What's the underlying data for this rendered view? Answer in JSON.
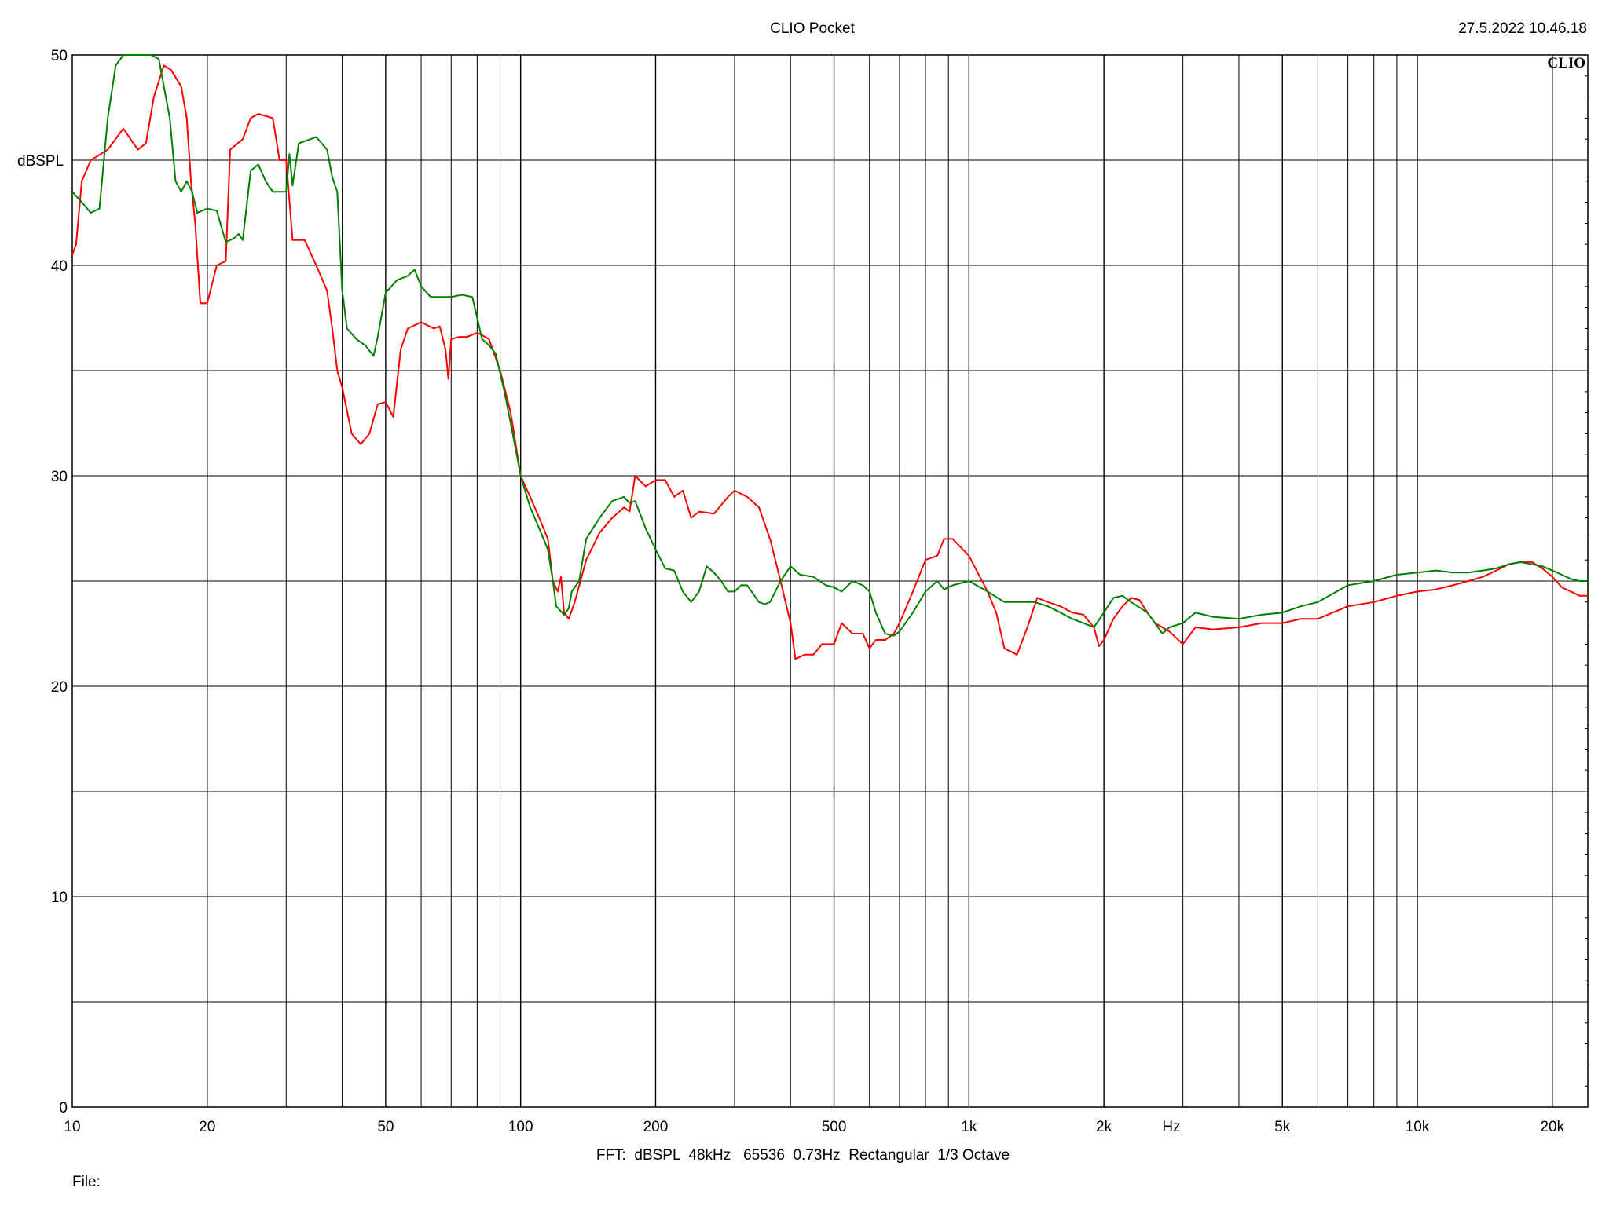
{
  "header": {
    "title": "CLIO Pocket",
    "timestamp": "27.5.2022 10.46.18",
    "logo": "CLIO"
  },
  "footer": {
    "settings": "FFT:  dBSPL  48kHz   65536  0.73Hz  Rectangular  1/3 Octave",
    "file_label": "File:"
  },
  "colors": {
    "background": "#ffffff",
    "grid": "#000000",
    "series_red": "#ff0000",
    "series_green": "#008000"
  },
  "chart_data": {
    "type": "line",
    "title": "CLIO Pocket",
    "ylabel": "dBSPL",
    "xlabel": "Hz",
    "x_scale": "log",
    "xlim": [
      10,
      24000
    ],
    "ylim": [
      0,
      50
    ],
    "grid": true,
    "legend": "none",
    "x_ticks": [
      {
        "value": 10,
        "label": "10"
      },
      {
        "value": 20,
        "label": "20"
      },
      {
        "value": 50,
        "label": "50"
      },
      {
        "value": 100,
        "label": "100"
      },
      {
        "value": 200,
        "label": "200"
      },
      {
        "value": 500,
        "label": "500"
      },
      {
        "value": 1000,
        "label": "1k"
      },
      {
        "value": 2000,
        "label": "2k"
      },
      {
        "value": 5000,
        "label": "5k"
      },
      {
        "value": 10000,
        "label": "10k"
      },
      {
        "value": 20000,
        "label": "20k"
      }
    ],
    "y_ticks": [
      {
        "value": 0,
        "label": "0"
      },
      {
        "value": 10,
        "label": "10"
      },
      {
        "value": 20,
        "label": "20"
      },
      {
        "value": 30,
        "label": "30"
      },
      {
        "value": 40,
        "label": "40"
      },
      {
        "value": 50,
        "label": "50"
      }
    ],
    "series": [
      {
        "color": "#ff0000",
        "points": [
          [
            10,
            40.5
          ],
          [
            10.2,
            41
          ],
          [
            10.5,
            44
          ],
          [
            11,
            45
          ],
          [
            12,
            45.5
          ],
          [
            13,
            46.5
          ],
          [
            14,
            45.5
          ],
          [
            14.6,
            45.8
          ],
          [
            15.2,
            48
          ],
          [
            16,
            49.5
          ],
          [
            16.6,
            49.3
          ],
          [
            17.5,
            48.5
          ],
          [
            18,
            47
          ],
          [
            18.4,
            44
          ],
          [
            18.8,
            42
          ],
          [
            19.3,
            38.2
          ],
          [
            20,
            38.2
          ],
          [
            21,
            40
          ],
          [
            22,
            40.2
          ],
          [
            22.5,
            45.5
          ],
          [
            24,
            46
          ],
          [
            25,
            47
          ],
          [
            26,
            47.2
          ],
          [
            28,
            47
          ],
          [
            29,
            45
          ],
          [
            30,
            45
          ],
          [
            31,
            41.2
          ],
          [
            33,
            41.2
          ],
          [
            35,
            40
          ],
          [
            37,
            38.8
          ],
          [
            38,
            37
          ],
          [
            39,
            35
          ],
          [
            40,
            34.2
          ],
          [
            42,
            32
          ],
          [
            44,
            31.5
          ],
          [
            46,
            32
          ],
          [
            48,
            33.4
          ],
          [
            50,
            33.5
          ],
          [
            52,
            32.8
          ],
          [
            54,
            36
          ],
          [
            56,
            37
          ],
          [
            60,
            37.3
          ],
          [
            64,
            37
          ],
          [
            66,
            37.1
          ],
          [
            68,
            36
          ],
          [
            69,
            34.6
          ],
          [
            70,
            36.5
          ],
          [
            73,
            36.6
          ],
          [
            76,
            36.6
          ],
          [
            80,
            36.8
          ],
          [
            85,
            36.5
          ],
          [
            90,
            35
          ],
          [
            95,
            33
          ],
          [
            100,
            30
          ],
          [
            105,
            29
          ],
          [
            110,
            28
          ],
          [
            115,
            27
          ],
          [
            118,
            25
          ],
          [
            121,
            24.5
          ],
          [
            123,
            25.2
          ],
          [
            125,
            23.5
          ],
          [
            128,
            23.2
          ],
          [
            132,
            24
          ],
          [
            140,
            26
          ],
          [
            150,
            27.3
          ],
          [
            160,
            28
          ],
          [
            170,
            28.5
          ],
          [
            175,
            28.3
          ],
          [
            180,
            30
          ],
          [
            190,
            29.5
          ],
          [
            200,
            29.8
          ],
          [
            210,
            29.8
          ],
          [
            220,
            29
          ],
          [
            230,
            29.3
          ],
          [
            240,
            28
          ],
          [
            250,
            28.3
          ],
          [
            270,
            28.2
          ],
          [
            290,
            29
          ],
          [
            300,
            29.3
          ],
          [
            320,
            29
          ],
          [
            340,
            28.5
          ],
          [
            360,
            27
          ],
          [
            380,
            25
          ],
          [
            400,
            23
          ],
          [
            410,
            21.3
          ],
          [
            430,
            21.5
          ],
          [
            450,
            21.5
          ],
          [
            470,
            22
          ],
          [
            500,
            22
          ],
          [
            520,
            23
          ],
          [
            550,
            22.5
          ],
          [
            580,
            22.5
          ],
          [
            600,
            21.8
          ],
          [
            620,
            22.2
          ],
          [
            650,
            22.2
          ],
          [
            680,
            22.5
          ],
          [
            700,
            23
          ],
          [
            750,
            24.5
          ],
          [
            800,
            26
          ],
          [
            850,
            26.2
          ],
          [
            880,
            27
          ],
          [
            920,
            27
          ],
          [
            1000,
            26.2
          ],
          [
            1100,
            24.5
          ],
          [
            1150,
            23.5
          ],
          [
            1200,
            21.8
          ],
          [
            1280,
            21.5
          ],
          [
            1350,
            22.8
          ],
          [
            1420,
            24.2
          ],
          [
            1500,
            24
          ],
          [
            1600,
            23.8
          ],
          [
            1700,
            23.5
          ],
          [
            1800,
            23.4
          ],
          [
            1900,
            22.8
          ],
          [
            1950,
            21.9
          ],
          [
            2000,
            22.2
          ],
          [
            2100,
            23.2
          ],
          [
            2200,
            23.8
          ],
          [
            2300,
            24.2
          ],
          [
            2400,
            24.1
          ],
          [
            2500,
            23.5
          ],
          [
            2600,
            23
          ],
          [
            2700,
            22.8
          ],
          [
            2800,
            22.6
          ],
          [
            3000,
            22
          ],
          [
            3200,
            22.8
          ],
          [
            3500,
            22.7
          ],
          [
            4000,
            22.8
          ],
          [
            4500,
            23
          ],
          [
            5000,
            23
          ],
          [
            5500,
            23.2
          ],
          [
            6000,
            23.2
          ],
          [
            7000,
            23.8
          ],
          [
            8000,
            24
          ],
          [
            9000,
            24.3
          ],
          [
            10000,
            24.5
          ],
          [
            11000,
            24.6
          ],
          [
            12000,
            24.8
          ],
          [
            13000,
            25
          ],
          [
            14000,
            25.2
          ],
          [
            15000,
            25.5
          ],
          [
            16000,
            25.8
          ],
          [
            17000,
            25.9
          ],
          [
            18000,
            25.9
          ],
          [
            19000,
            25.6
          ],
          [
            20000,
            25.2
          ],
          [
            21000,
            24.7
          ],
          [
            22000,
            24.5
          ],
          [
            23000,
            24.3
          ],
          [
            24000,
            24.3
          ]
        ]
      },
      {
        "color": "#008000",
        "points": [
          [
            10,
            43.5
          ],
          [
            10.5,
            43
          ],
          [
            11,
            42.5
          ],
          [
            11.5,
            42.7
          ],
          [
            12,
            47
          ],
          [
            12.5,
            49.5
          ],
          [
            13,
            50
          ],
          [
            14,
            50
          ],
          [
            15,
            50
          ],
          [
            15.6,
            49.8
          ],
          [
            16.5,
            47
          ],
          [
            17,
            44
          ],
          [
            17.5,
            43.5
          ],
          [
            18,
            44
          ],
          [
            18.5,
            43.5
          ],
          [
            19,
            42.5
          ],
          [
            20,
            42.7
          ],
          [
            21,
            42.6
          ],
          [
            22,
            41.1
          ],
          [
            23,
            41.3
          ],
          [
            23.5,
            41.5
          ],
          [
            24,
            41.2
          ],
          [
            25,
            44.5
          ],
          [
            26,
            44.8
          ],
          [
            27,
            44
          ],
          [
            28,
            43.5
          ],
          [
            30,
            43.5
          ],
          [
            30.5,
            45.3
          ],
          [
            31,
            43.8
          ],
          [
            32,
            45.8
          ],
          [
            34,
            46
          ],
          [
            35,
            46.1
          ],
          [
            37,
            45.5
          ],
          [
            38,
            44.2
          ],
          [
            39,
            43.5
          ],
          [
            40,
            38.8
          ],
          [
            41,
            37
          ],
          [
            43,
            36.5
          ],
          [
            45,
            36.2
          ],
          [
            47,
            35.7
          ],
          [
            48,
            36.6
          ],
          [
            50,
            38.7
          ],
          [
            53,
            39.3
          ],
          [
            56,
            39.5
          ],
          [
            58,
            39.8
          ],
          [
            60,
            39
          ],
          [
            63,
            38.5
          ],
          [
            70,
            38.5
          ],
          [
            74,
            38.6
          ],
          [
            78,
            38.5
          ],
          [
            80,
            37.5
          ],
          [
            82,
            36.5
          ],
          [
            85,
            36.2
          ],
          [
            88,
            35.8
          ],
          [
            92,
            34
          ],
          [
            96,
            32
          ],
          [
            100,
            30
          ],
          [
            105,
            28.5
          ],
          [
            110,
            27.5
          ],
          [
            115,
            26.5
          ],
          [
            118,
            25
          ],
          [
            120,
            23.8
          ],
          [
            125,
            23.4
          ],
          [
            128,
            23.7
          ],
          [
            130,
            24.5
          ],
          [
            135,
            25
          ],
          [
            140,
            27
          ],
          [
            150,
            28
          ],
          [
            160,
            28.8
          ],
          [
            170,
            29
          ],
          [
            175,
            28.7
          ],
          [
            180,
            28.8
          ],
          [
            190,
            27.5
          ],
          [
            200,
            26.5
          ],
          [
            210,
            25.6
          ],
          [
            220,
            25.5
          ],
          [
            230,
            24.5
          ],
          [
            240,
            24
          ],
          [
            250,
            24.5
          ],
          [
            260,
            25.7
          ],
          [
            270,
            25.4
          ],
          [
            280,
            25
          ],
          [
            290,
            24.5
          ],
          [
            300,
            24.5
          ],
          [
            310,
            24.8
          ],
          [
            320,
            24.8
          ],
          [
            340,
            24
          ],
          [
            350,
            23.9
          ],
          [
            360,
            24
          ],
          [
            380,
            25
          ],
          [
            400,
            25.7
          ],
          [
            420,
            25.3
          ],
          [
            450,
            25.2
          ],
          [
            480,
            24.8
          ],
          [
            500,
            24.7
          ],
          [
            520,
            24.5
          ],
          [
            550,
            25
          ],
          [
            580,
            24.8
          ],
          [
            600,
            24.5
          ],
          [
            620,
            23.5
          ],
          [
            650,
            22.5
          ],
          [
            680,
            22.4
          ],
          [
            700,
            22.6
          ],
          [
            750,
            23.5
          ],
          [
            800,
            24.5
          ],
          [
            850,
            25
          ],
          [
            880,
            24.6
          ],
          [
            920,
            24.8
          ],
          [
            1000,
            25
          ],
          [
            1100,
            24.5
          ],
          [
            1200,
            24
          ],
          [
            1300,
            24
          ],
          [
            1400,
            24
          ],
          [
            1500,
            23.8
          ],
          [
            1600,
            23.5
          ],
          [
            1700,
            23.2
          ],
          [
            1800,
            23
          ],
          [
            1900,
            22.8
          ],
          [
            2000,
            23.5
          ],
          [
            2100,
            24.2
          ],
          [
            2200,
            24.3
          ],
          [
            2300,
            24
          ],
          [
            2500,
            23.5
          ],
          [
            2600,
            23
          ],
          [
            2700,
            22.5
          ],
          [
            2800,
            22.8
          ],
          [
            3000,
            23
          ],
          [
            3200,
            23.5
          ],
          [
            3500,
            23.3
          ],
          [
            4000,
            23.2
          ],
          [
            4500,
            23.4
          ],
          [
            5000,
            23.5
          ],
          [
            5500,
            23.8
          ],
          [
            6000,
            24
          ],
          [
            7000,
            24.8
          ],
          [
            8000,
            25
          ],
          [
            9000,
            25.3
          ],
          [
            10000,
            25.4
          ],
          [
            11000,
            25.5
          ],
          [
            12000,
            25.4
          ],
          [
            13000,
            25.4
          ],
          [
            14000,
            25.5
          ],
          [
            15000,
            25.6
          ],
          [
            16000,
            25.8
          ],
          [
            17000,
            25.9
          ],
          [
            18000,
            25.8
          ],
          [
            19000,
            25.7
          ],
          [
            20000,
            25.5
          ],
          [
            21000,
            25.3
          ],
          [
            22000,
            25.1
          ],
          [
            23000,
            25
          ],
          [
            24000,
            25
          ]
        ]
      }
    ]
  }
}
